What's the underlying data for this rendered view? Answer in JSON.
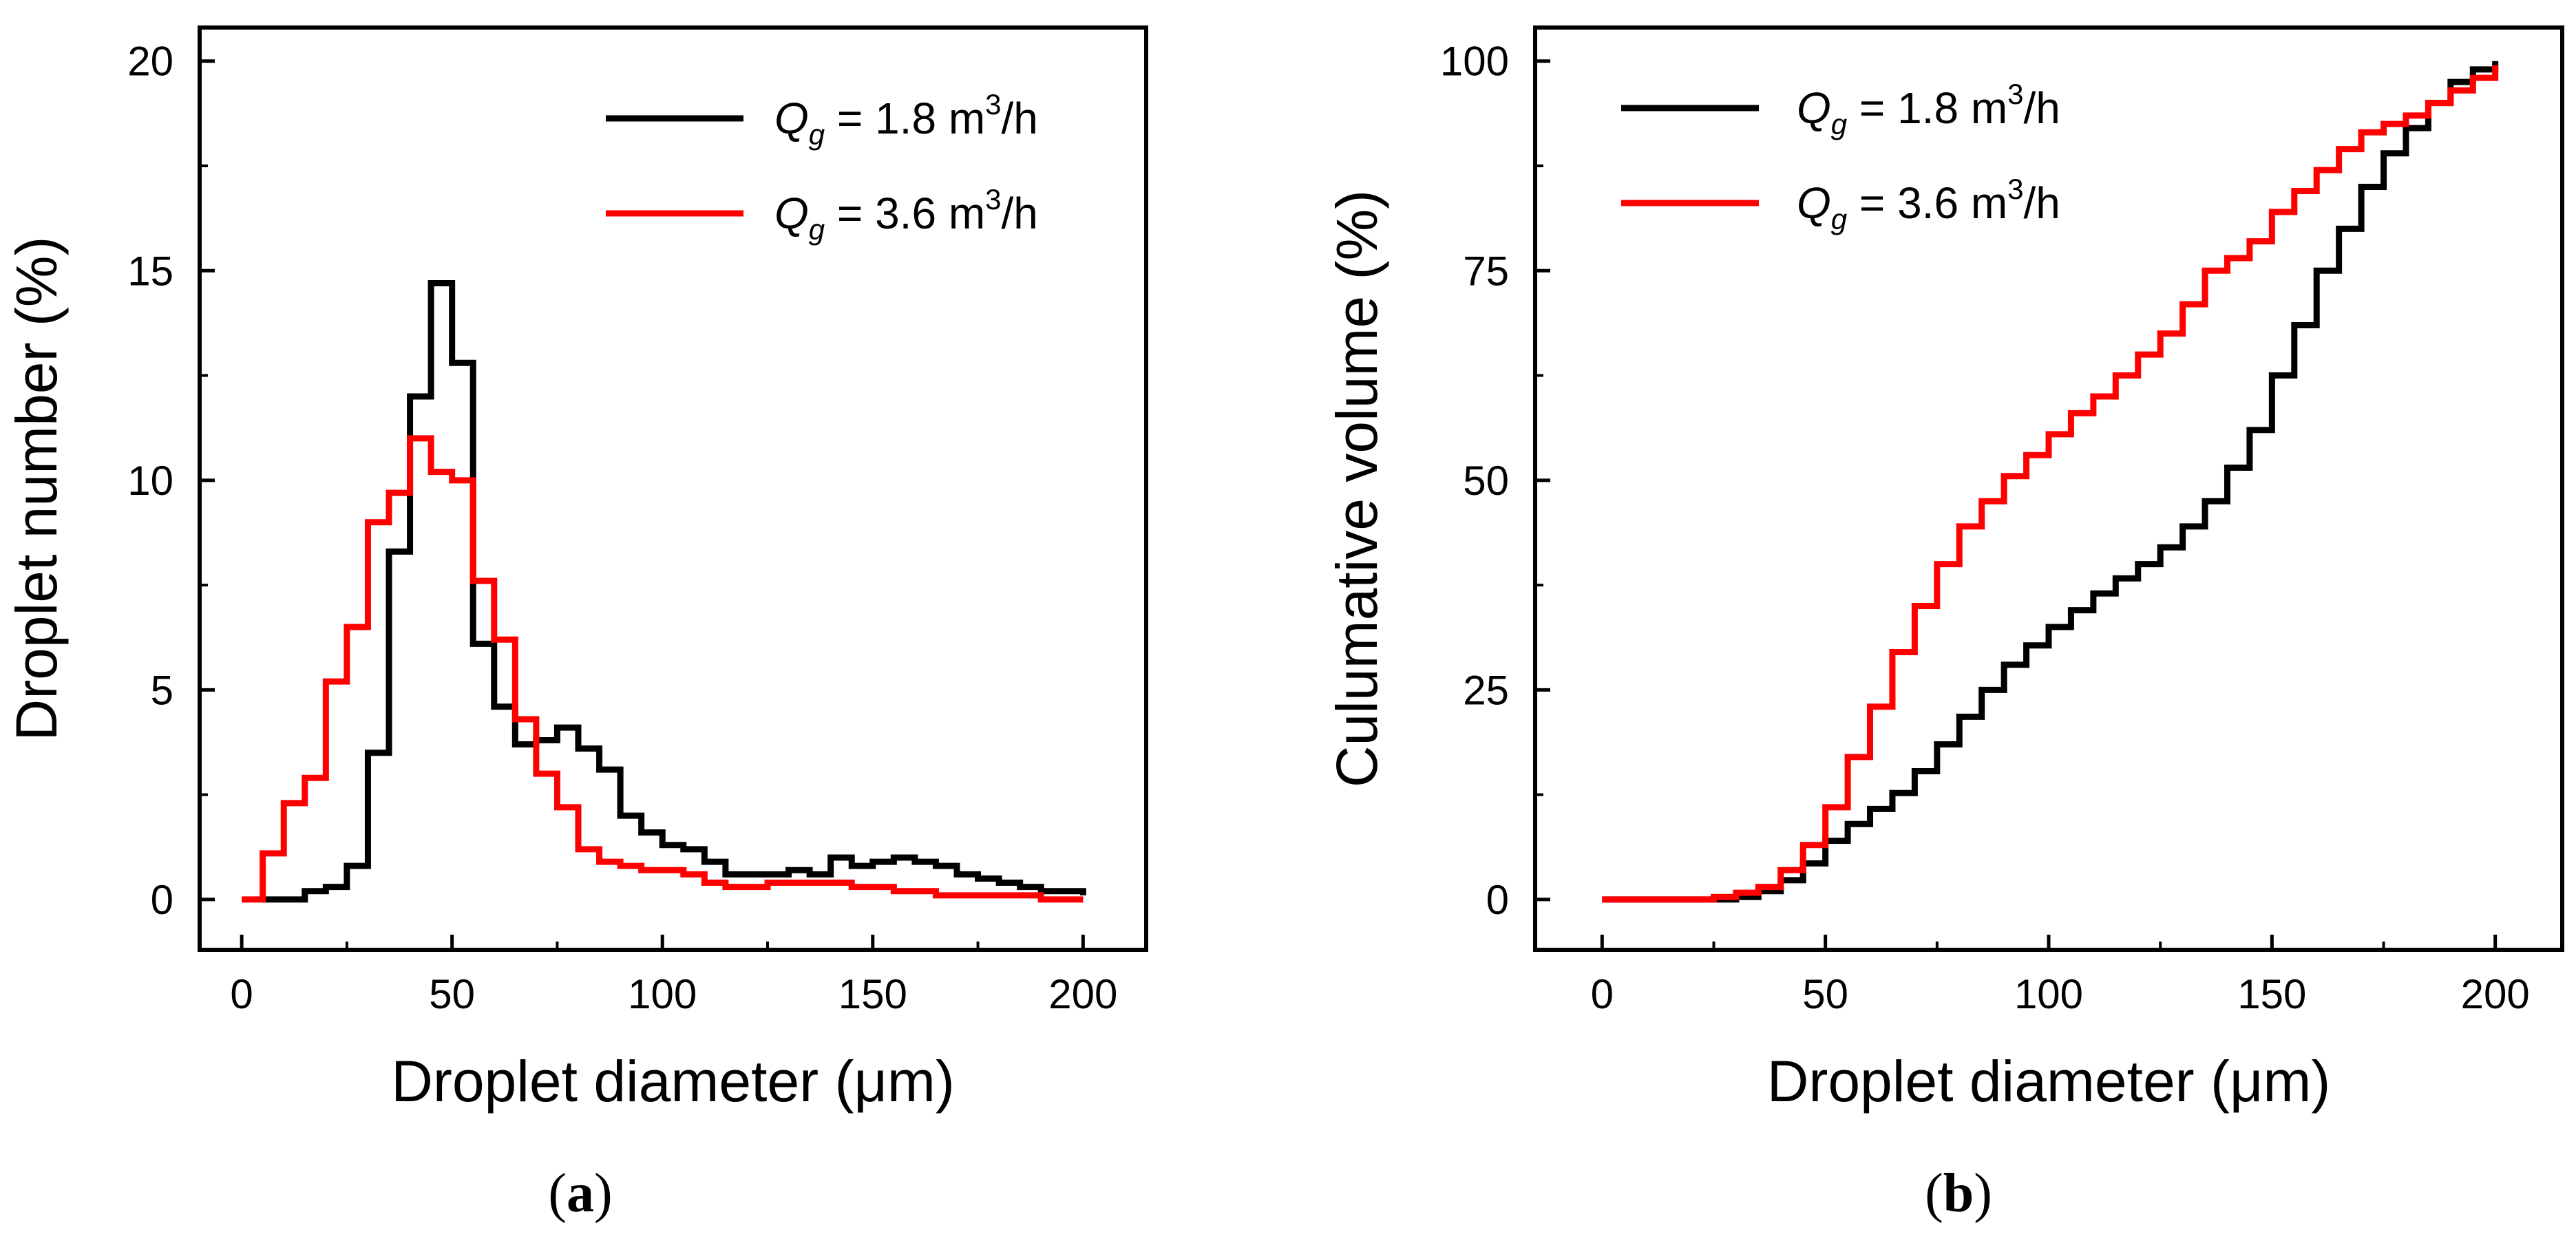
{
  "chart_data": [
    {
      "type": "line",
      "step": true,
      "panel_label": {
        "open": "(",
        "letter": "a",
        "close": ")"
      },
      "xlabel": "Droplet diameter (μm)",
      "ylabel": "Droplet number (%)",
      "xlim": [
        -10,
        215
      ],
      "ylim": [
        -1.2,
        20.8
      ],
      "xticks": [
        0,
        50,
        100,
        150,
        200
      ],
      "yticks": [
        0,
        5,
        10,
        15,
        20
      ],
      "x_tick_labels": [
        "0",
        "50",
        "100",
        "150",
        "200"
      ],
      "y_tick_labels": [
        "0",
        "5",
        "10",
        "15",
        "20"
      ],
      "legend_position": "top-right",
      "series": [
        {
          "name": "Q_g = 1.8 m³/h",
          "legend": {
            "q": "Q",
            "sub": "g",
            "value": " = 1.8 m",
            "sup": "3",
            "unit": "/h"
          },
          "color": "#000000",
          "x": [
            5,
            10,
            15,
            20,
            25,
            30,
            35,
            40,
            45,
            50,
            55,
            60,
            65,
            70,
            75,
            80,
            85,
            90,
            95,
            100,
            105,
            110,
            115,
            120,
            125,
            130,
            135,
            140,
            145,
            150,
            155,
            160,
            165,
            170,
            175,
            180,
            185,
            190,
            195,
            200
          ],
          "y": [
            0,
            0,
            0.2,
            0.3,
            0.8,
            3.5,
            8.3,
            12.0,
            14.7,
            12.8,
            6.1,
            4.6,
            3.7,
            3.8,
            4.1,
            3.6,
            3.1,
            2.0,
            1.6,
            1.3,
            1.2,
            0.9,
            0.6,
            0.6,
            0.6,
            0.7,
            0.6,
            1.0,
            0.8,
            0.9,
            1.0,
            0.9,
            0.8,
            0.6,
            0.5,
            0.4,
            0.3,
            0.2,
            0.2,
            0.1
          ]
        },
        {
          "name": "Q_g = 3.6 m³/h",
          "legend": {
            "q": "Q",
            "sub": "g",
            "value": " = 3.6 m",
            "sup": "3",
            "unit": "/h"
          },
          "color": "#ff0000",
          "x": [
            0,
            5,
            10,
            15,
            20,
            25,
            30,
            35,
            40,
            45,
            50,
            55,
            60,
            65,
            70,
            75,
            80,
            85,
            90,
            95,
            100,
            105,
            110,
            115,
            120,
            125,
            130,
            135,
            140,
            145,
            150,
            155,
            160,
            165,
            170,
            175,
            180,
            185,
            190,
            195,
            200
          ],
          "y": [
            0,
            1.1,
            2.3,
            2.9,
            5.2,
            6.5,
            9.0,
            9.7,
            11.0,
            10.2,
            10.0,
            7.6,
            6.2,
            4.3,
            3.0,
            2.2,
            1.2,
            0.9,
            0.8,
            0.7,
            0.7,
            0.6,
            0.4,
            0.3,
            0.3,
            0.4,
            0.4,
            0.4,
            0.4,
            0.3,
            0.3,
            0.2,
            0.2,
            0.1,
            0.1,
            0.1,
            0.1,
            0.1,
            0.0,
            0.0,
            0.0
          ]
        }
      ]
    },
    {
      "type": "line",
      "step": true,
      "panel_label": {
        "open": "(",
        "letter": "b",
        "close": ")"
      },
      "xlabel": "Droplet diameter (μm)",
      "ylabel": "Culumative volume (%)",
      "xlim": [
        -15,
        215
      ],
      "ylim": [
        -6,
        104
      ],
      "xticks": [
        0,
        50,
        100,
        150,
        200
      ],
      "yticks": [
        0,
        25,
        50,
        75,
        100
      ],
      "x_tick_labels": [
        "0",
        "50",
        "100",
        "150",
        "200"
      ],
      "y_tick_labels": [
        "0",
        "25",
        "50",
        "75",
        "100"
      ],
      "legend_position": "top-left",
      "series": [
        {
          "name": "Q_g = 1.8 m³/h",
          "legend": {
            "q": "Q",
            "sub": "g",
            "value": " = 1.8 m",
            "sup": "3",
            "unit": "/h"
          },
          "color": "#000000",
          "x": [
            0,
            5,
            10,
            15,
            20,
            25,
            30,
            35,
            40,
            45,
            50,
            55,
            60,
            65,
            70,
            75,
            80,
            85,
            90,
            95,
            100,
            105,
            110,
            115,
            120,
            125,
            130,
            135,
            140,
            145,
            150,
            155,
            160,
            165,
            170,
            175,
            180,
            185,
            190,
            195,
            200
          ],
          "y": [
            0,
            0,
            0,
            0,
            0,
            0,
            0.3,
            1.0,
            2.3,
            4.3,
            7.0,
            9.0,
            10.8,
            12.7,
            15.3,
            18.5,
            21.8,
            25.0,
            28.0,
            30.3,
            32.5,
            34.5,
            36.5,
            38.3,
            40.0,
            42.0,
            44.5,
            47.5,
            51.5,
            56.0,
            62.5,
            68.5,
            75.0,
            80.0,
            85.0,
            89.0,
            92.0,
            95.0,
            97.5,
            99.0,
            100.0
          ]
        },
        {
          "name": "Q_g = 3.6 m³/h",
          "legend": {
            "q": "Q",
            "sub": "g",
            "value": " = 3.6 m",
            "sup": "3",
            "unit": "/h"
          },
          "color": "#ff0000",
          "x": [
            0,
            5,
            10,
            15,
            20,
            25,
            30,
            35,
            40,
            45,
            50,
            55,
            60,
            65,
            70,
            75,
            80,
            85,
            90,
            95,
            100,
            105,
            110,
            115,
            120,
            125,
            130,
            135,
            140,
            145,
            150,
            155,
            160,
            165,
            170,
            175,
            180,
            185,
            190,
            195,
            200
          ],
          "y": [
            0,
            0,
            0,
            0,
            0,
            0.3,
            0.8,
            1.5,
            3.5,
            6.5,
            11.0,
            17.0,
            23.0,
            29.5,
            35.0,
            40.0,
            44.5,
            47.5,
            50.5,
            53.0,
            55.5,
            58.0,
            60.0,
            62.5,
            65.0,
            67.5,
            71.0,
            75.0,
            76.5,
            78.5,
            82.0,
            84.5,
            87.0,
            89.5,
            91.5,
            92.5,
            93.5,
            95.0,
            96.5,
            98.0,
            99.5
          ]
        }
      ]
    }
  ]
}
